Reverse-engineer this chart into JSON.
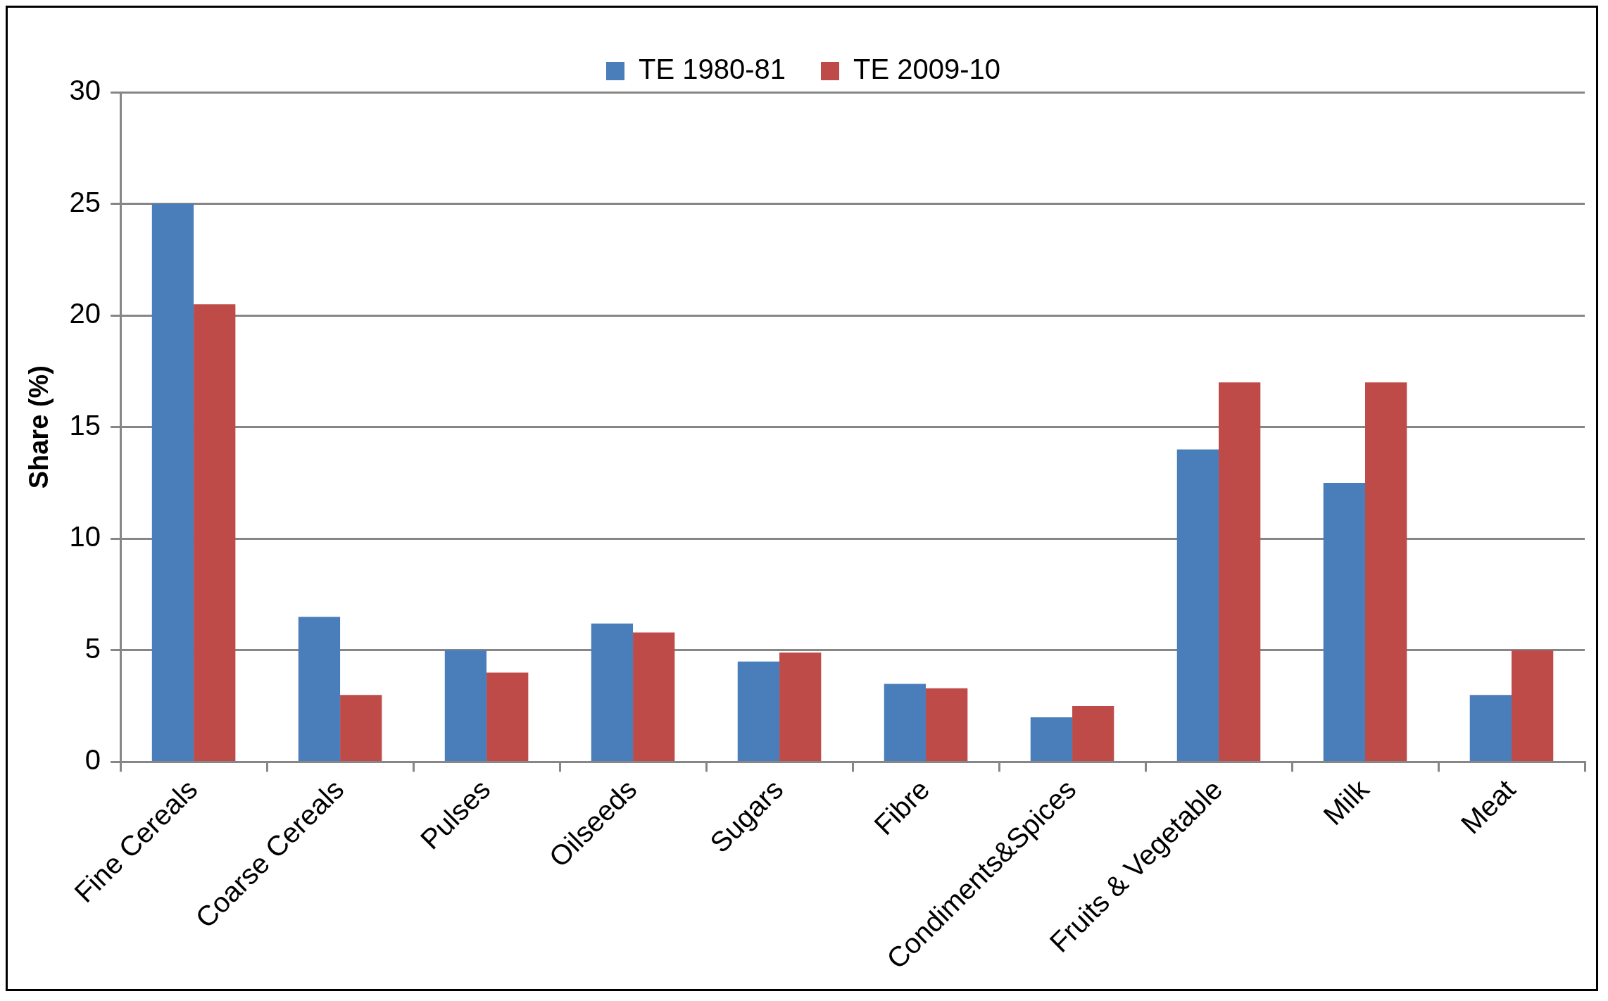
{
  "chart_data": {
    "type": "bar",
    "ylabel": "Share (%)",
    "categories": [
      "Fine Cereals",
      "Coarse Cereals",
      "Pulses",
      "Oilseeds",
      "Sugars",
      "Fibre",
      "Condiments&Spices",
      "Fruits & Vegetable",
      "Milk",
      "Meat"
    ],
    "series": [
      {
        "name": "TE 1980-81",
        "color": "#4a7ebb",
        "values": [
          25,
          6.5,
          5,
          6.2,
          4.5,
          3.5,
          2,
          14,
          12.5,
          3
        ]
      },
      {
        "name": "TE 2009-10",
        "color": "#be4b48",
        "values": [
          20.5,
          3,
          4,
          5.8,
          4.9,
          3.3,
          2.5,
          17,
          17,
          5
        ]
      }
    ],
    "ylim": [
      0,
      30
    ],
    "yticks": [
      0,
      5,
      10,
      15,
      20,
      25,
      30
    ],
    "grid": "y",
    "legend": "top"
  }
}
